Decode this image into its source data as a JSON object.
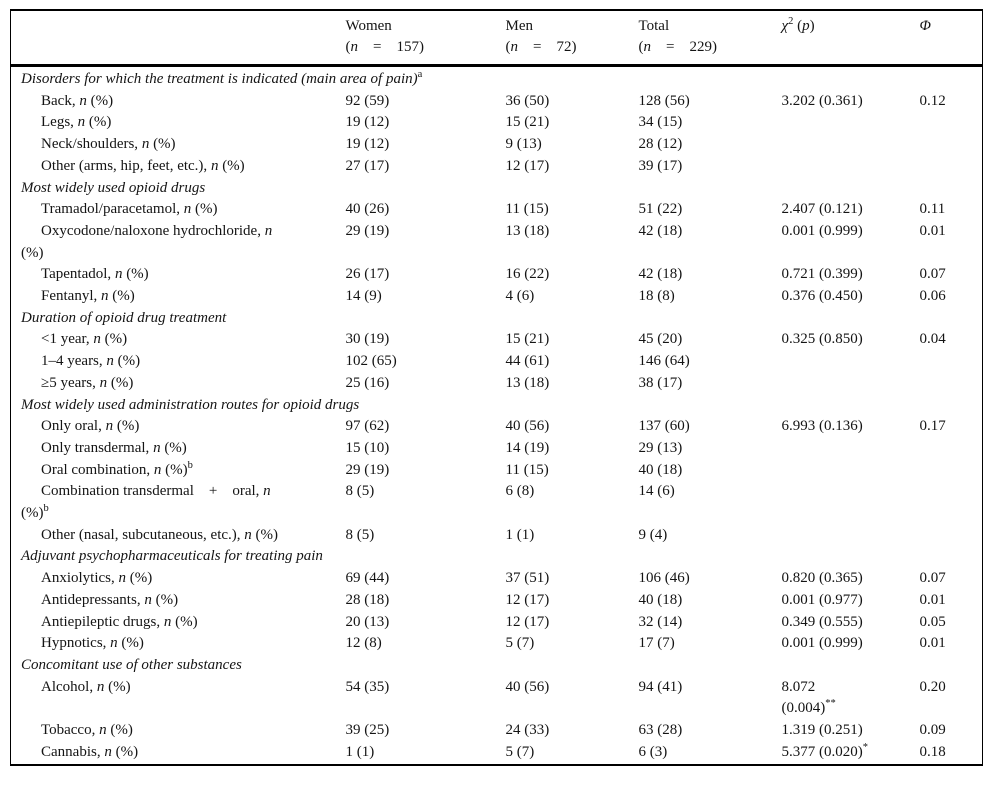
{
  "table": {
    "columns": {
      "variable": "",
      "women": {
        "title": "Women",
        "n": "(*n* = 157)"
      },
      "men": {
        "title": "Men",
        "n": "(*n* = 72)"
      },
      "total": {
        "title": "Total",
        "n": "(*n* = 229)"
      },
      "chi": {
        "title": "*χ*^2^ (*p*)"
      },
      "phi": {
        "title": "*Φ*"
      }
    },
    "rows": [
      {
        "type": "section",
        "label": "Disorders for which the treatment is indicated (main area of pain)^a^"
      },
      {
        "type": "item",
        "label": "Back, *n* (%)",
        "women": "92 (59)",
        "men": "36 (50)",
        "total": "128 (56)",
        "chi": "3.202 (0.361)",
        "phi": "0.12"
      },
      {
        "type": "item",
        "label": "Legs, *n* (%)",
        "women": "19 (12)",
        "men": "15 (21)",
        "total": "34 (15)",
        "chi": "",
        "phi": ""
      },
      {
        "type": "item",
        "label": "Neck/shoulders, *n* (%)",
        "women": "19 (12)",
        "men": "9 (13)",
        "total": "28 (12)",
        "chi": "",
        "phi": ""
      },
      {
        "type": "item",
        "label": "Other (arms, hip, feet, etc.), *n* (%)",
        "women": "27 (17)",
        "men": "12 (17)",
        "total": "39 (17)",
        "chi": "",
        "phi": ""
      },
      {
        "type": "section",
        "label": "Most widely used opioid drugs"
      },
      {
        "type": "item",
        "label": "Tramadol/paracetamol, *n* (%)",
        "women": "40 (26)",
        "men": "11 (15)",
        "total": "51 (22)",
        "chi": "2.407 (0.121)",
        "phi": "0.11"
      },
      {
        "type": "item",
        "label": "Oxycodone/naloxone hydrochloride, *n*\n(%)",
        "women": "29 (19)",
        "men": "13 (18)",
        "total": "42 (18)",
        "chi": "0.001 (0.999)",
        "phi": "0.01"
      },
      {
        "type": "item",
        "label": "Tapentadol, *n* (%)",
        "women": "26 (17)",
        "men": "16 (22)",
        "total": "42 (18)",
        "chi": "0.721 (0.399)",
        "phi": "0.07"
      },
      {
        "type": "item",
        "label": "Fentanyl, *n* (%)",
        "women": "14 (9)",
        "men": "4 (6)",
        "total": "18 (8)",
        "chi": "0.376 (0.450)",
        "phi": "0.06"
      },
      {
        "type": "section",
        "label": "Duration of opioid drug treatment"
      },
      {
        "type": "item",
        "label": "<1 year, *n* (%)",
        "women": "30 (19)",
        "men": "15 (21)",
        "total": "45 (20)",
        "chi": "0.325 (0.850)",
        "phi": "0.04"
      },
      {
        "type": "item",
        "label": "1–4 years, *n* (%)",
        "women": "102 (65)",
        "men": "44 (61)",
        "total": "146 (64)",
        "chi": "",
        "phi": ""
      },
      {
        "type": "item",
        "label": "≥5 years, *n* (%)",
        "women": "25 (16)",
        "men": "13 (18)",
        "total": "38 (17)",
        "chi": "",
        "phi": ""
      },
      {
        "type": "section",
        "label": "Most widely used administration routes for opioid drugs"
      },
      {
        "type": "item",
        "label": "Only oral, *n* (%)",
        "women": "97 (62)",
        "men": "40 (56)",
        "total": "137 (60)",
        "chi": "6.993 (0.136)",
        "phi": "0.17"
      },
      {
        "type": "item",
        "label": "Only transdermal, *n* (%)",
        "women": "15 (10)",
        "men": "14 (19)",
        "total": "29 (13)",
        "chi": "",
        "phi": ""
      },
      {
        "type": "item",
        "label": "Oral combination, *n* (%)^b^",
        "women": "29 (19)",
        "men": "11 (15)",
        "total": "40 (18)",
        "chi": "",
        "phi": ""
      },
      {
        "type": "item",
        "label": "Combination transdermal + oral, *n*\n(%)^b^",
        "women": "8 (5)",
        "men": "6 (8)",
        "total": "14 (6)",
        "chi": "",
        "phi": ""
      },
      {
        "type": "item",
        "label": "Other (nasal, subcutaneous, etc.), *n* (%)",
        "women": "8 (5)",
        "men": "1 (1)",
        "total": "9 (4)",
        "chi": "",
        "phi": ""
      },
      {
        "type": "section",
        "label": "Adjuvant psychopharmaceuticals for treating pain"
      },
      {
        "type": "item",
        "label": "Anxiolytics, *n* (%)",
        "women": "69 (44)",
        "men": "37 (51)",
        "total": "106 (46)",
        "chi": "0.820 (0.365)",
        "phi": "0.07"
      },
      {
        "type": "item",
        "label": "Antidepressants, *n* (%)",
        "women": "28 (18)",
        "men": "12 (17)",
        "total": "40 (18)",
        "chi": "0.001 (0.977)",
        "phi": "0.01"
      },
      {
        "type": "item",
        "label": "Antiepileptic drugs, *n* (%)",
        "women": "20 (13)",
        "men": "12 (17)",
        "total": "32 (14)",
        "chi": "0.349 (0.555)",
        "phi": "0.05"
      },
      {
        "type": "item",
        "label": "Hypnotics, *n* (%)",
        "women": "12 (8)",
        "men": "5 (7)",
        "total": "17 (7)",
        "chi": "0.001 (0.999)",
        "phi": "0.01"
      },
      {
        "type": "section",
        "label": "Concomitant use of other substances"
      },
      {
        "type": "item",
        "label": "Alcohol, *n* (%)",
        "women": "54 (35)",
        "men": "40 (56)",
        "total": "94 (41)",
        "chi": "8.072\n(0.004)^**^",
        "phi": "0.20"
      },
      {
        "type": "item",
        "label": "Tobacco, *n* (%)",
        "women": "39 (25)",
        "men": "24 (33)",
        "total": "63 (28)",
        "chi": "1.319 (0.251)",
        "phi": "0.09"
      },
      {
        "type": "item",
        "label": "Cannabis, *n* (%)",
        "women": "1 (1)",
        "men": "5 (7)",
        "total": "6 (3)",
        "chi": "5.377 (0.020)^*^",
        "phi": "0.18"
      }
    ]
  }
}
